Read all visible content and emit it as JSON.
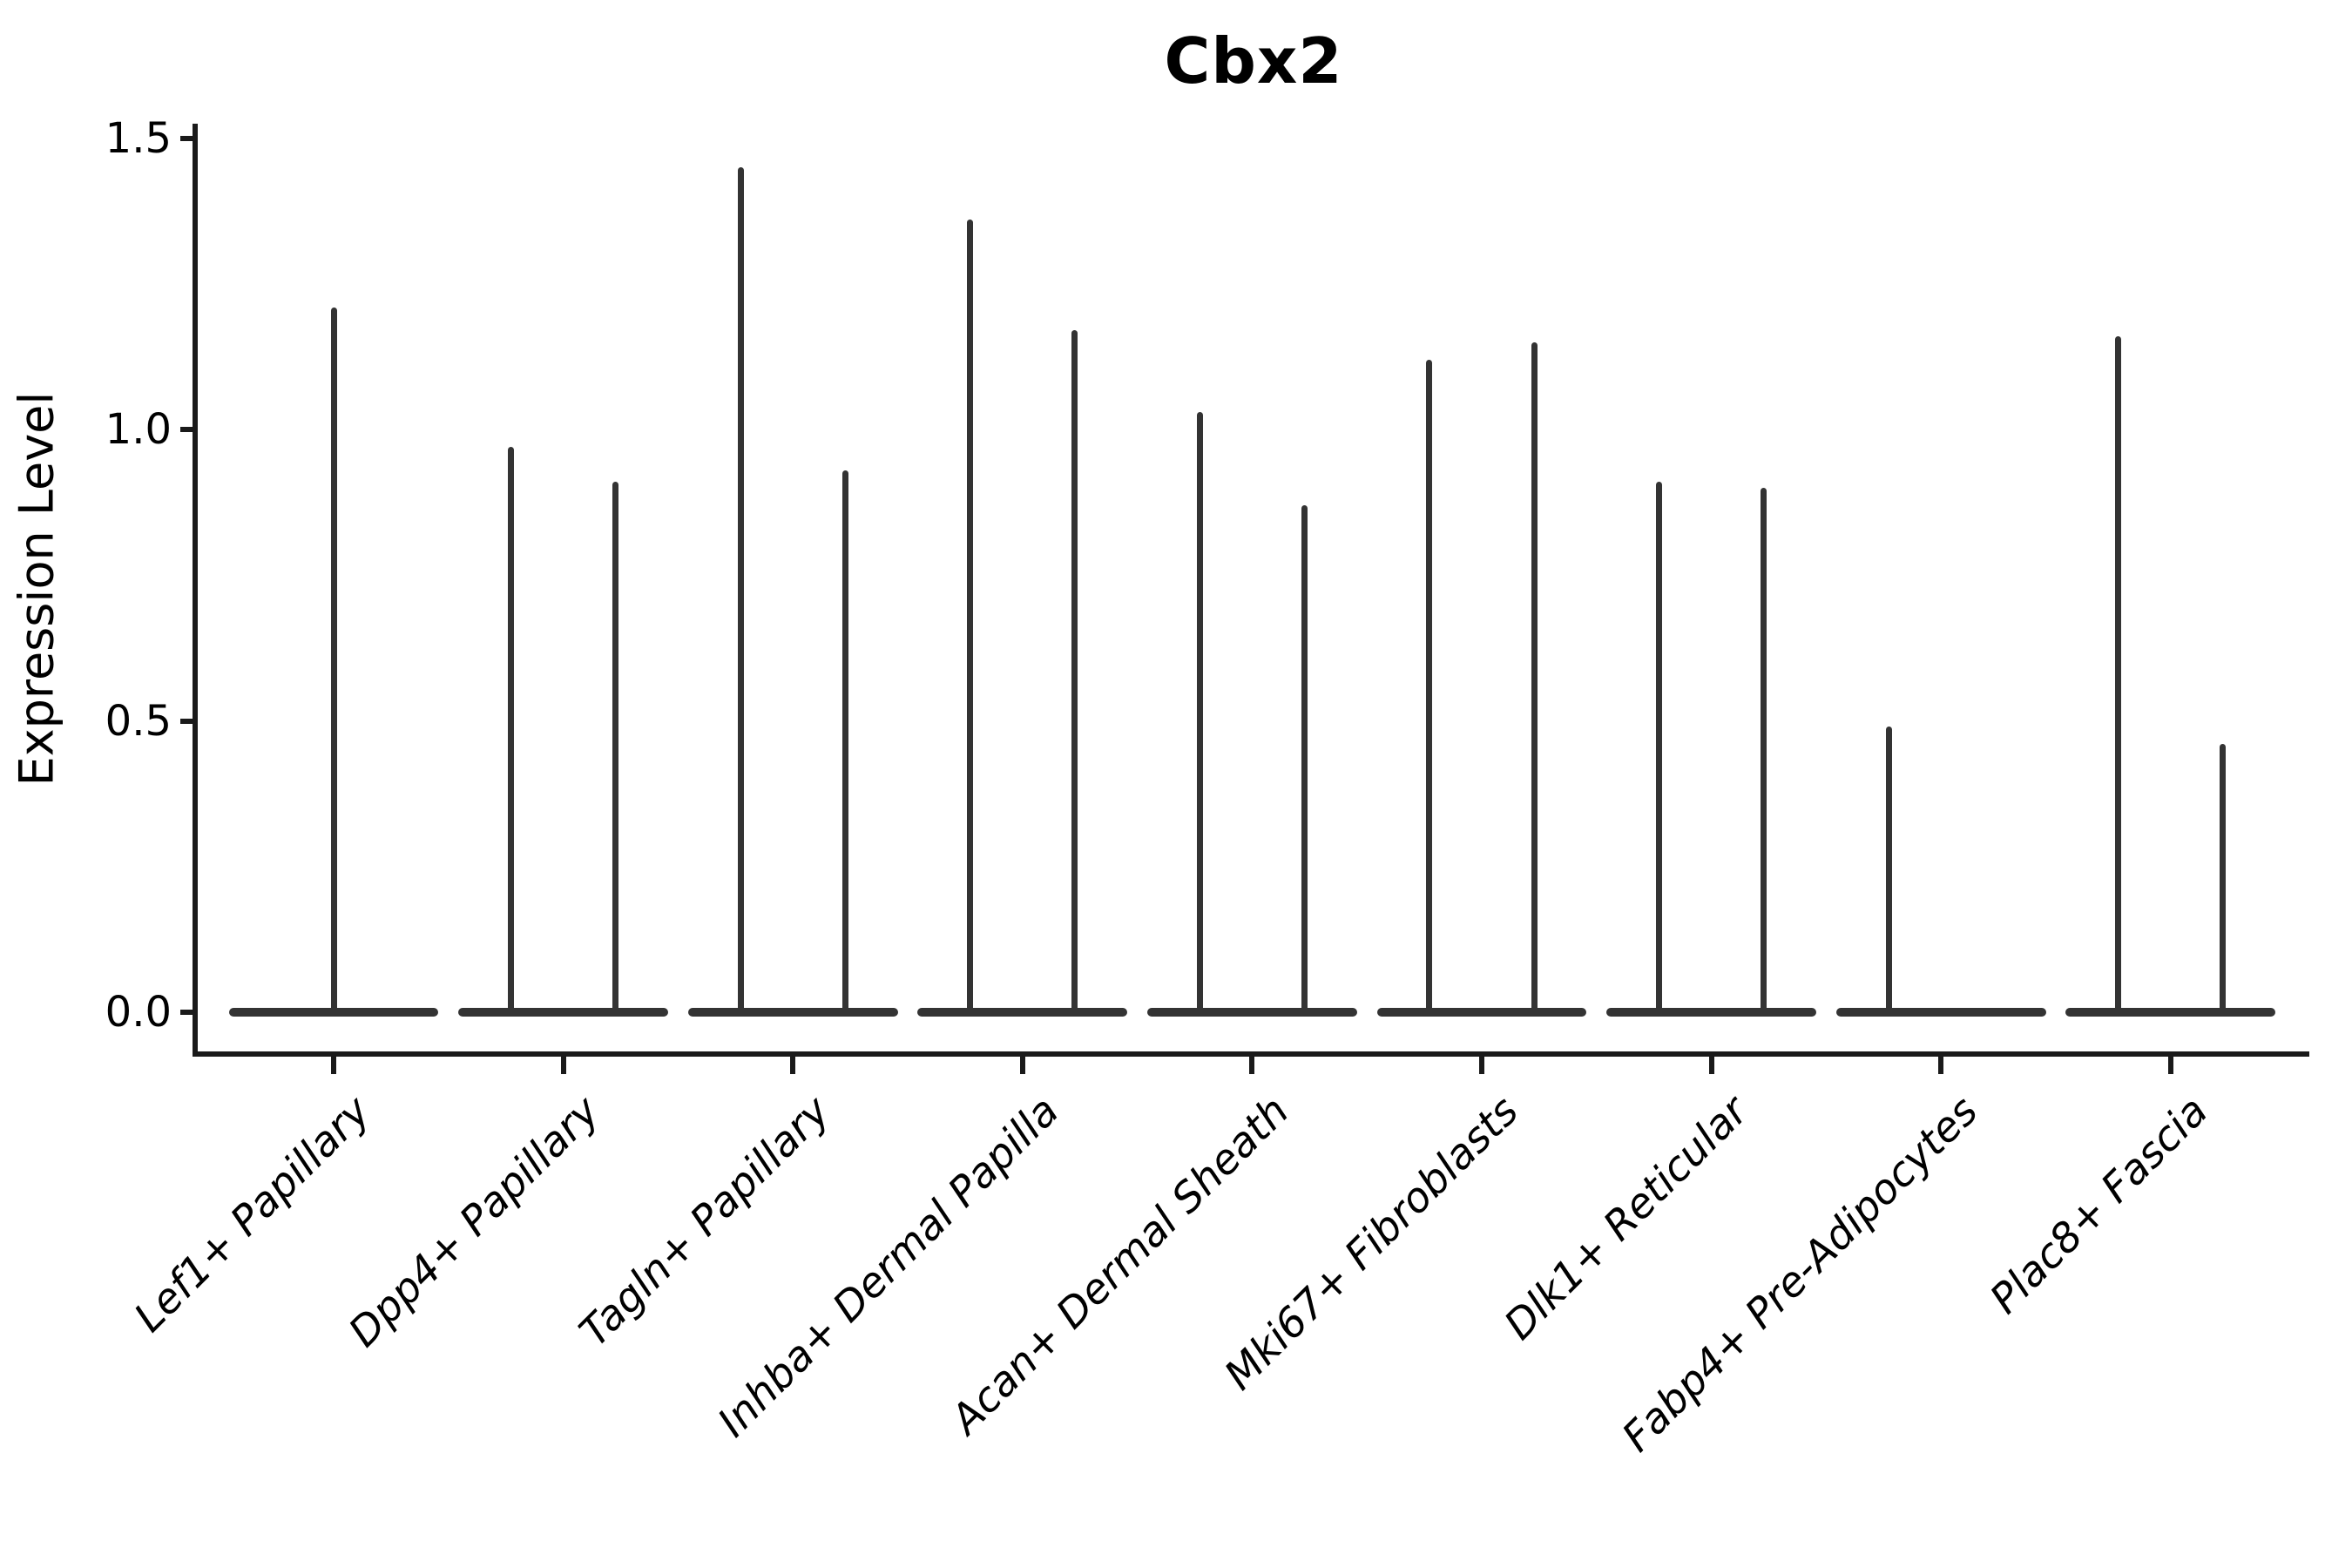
{
  "figure": {
    "title": "Cbx2",
    "ylabel": "Expression Level"
  },
  "chart_data": {
    "type": "violin",
    "title": "Cbx2",
    "xlabel": "",
    "ylabel": "Expression Level",
    "ylim": [
      -0.07,
      1.53
    ],
    "yticks": [
      1.5,
      1.0,
      0.5,
      0.0
    ],
    "ytick_labels": [
      "1.5",
      "1.0",
      "0.5",
      "0.0"
    ],
    "grid": false,
    "legend": "none",
    "ink_color": "#333333",
    "axis_color": "#1a1a1a",
    "text_color": "#000000",
    "description": "Violin plot of Cbx2 expression per fibroblast subtype; nearly all density is at expression 0 (wide flat base), with thin spikes reaching the maximum expression of each sub-population.",
    "categories": [
      "Lef1+ Papillary",
      "Dpp4+ Papillary",
      "Tagln+ Papillary",
      "Inhba+ Dermal Papilla",
      "Acan+ Dermal Sheath",
      "Mki67+ Fibroblasts",
      "Dlk1+ Reticular",
      "Fabp4+ Pre-Adipocytes",
      "Plac8+ Fascia"
    ],
    "violins": [
      {
        "category": "Lef1+ Papillary",
        "base_halfwidth": 0.457,
        "spikes": [
          {
            "offset": 0.0,
            "max": 1.21
          }
        ]
      },
      {
        "category": "Dpp4+ Papillary",
        "base_halfwidth": 0.457,
        "spikes": [
          {
            "offset": -0.228,
            "max": 0.97
          },
          {
            "offset": 0.228,
            "max": 0.91
          }
        ]
      },
      {
        "category": "Tagln+ Papillary",
        "base_halfwidth": 0.457,
        "spikes": [
          {
            "offset": -0.228,
            "max": 1.45
          },
          {
            "offset": 0.228,
            "max": 0.93
          }
        ]
      },
      {
        "category": "Inhba+ Dermal Papilla",
        "base_halfwidth": 0.457,
        "spikes": [
          {
            "offset": -0.228,
            "max": 1.36
          },
          {
            "offset": 0.228,
            "max": 1.17
          }
        ]
      },
      {
        "category": "Acan+ Dermal Sheath",
        "base_halfwidth": 0.457,
        "spikes": [
          {
            "offset": -0.228,
            "max": 1.03
          },
          {
            "offset": 0.228,
            "max": 0.87
          }
        ]
      },
      {
        "category": "Mki67+ Fibroblasts",
        "base_halfwidth": 0.457,
        "spikes": [
          {
            "offset": -0.228,
            "max": 1.12
          },
          {
            "offset": 0.228,
            "max": 1.15
          }
        ]
      },
      {
        "category": "Dlk1+ Reticular",
        "base_halfwidth": 0.457,
        "spikes": [
          {
            "offset": -0.228,
            "max": 0.91
          },
          {
            "offset": 0.228,
            "max": 0.9
          }
        ]
      },
      {
        "category": "Fabp4+ Pre-Adipocytes",
        "base_halfwidth": 0.457,
        "spikes": [
          {
            "offset": -0.228,
            "max": 0.49
          }
        ]
      },
      {
        "category": "Plac8+ Fascia",
        "base_halfwidth": 0.457,
        "spikes": [
          {
            "offset": -0.228,
            "max": 1.16
          },
          {
            "offset": 0.228,
            "max": 0.46
          }
        ]
      }
    ]
  }
}
